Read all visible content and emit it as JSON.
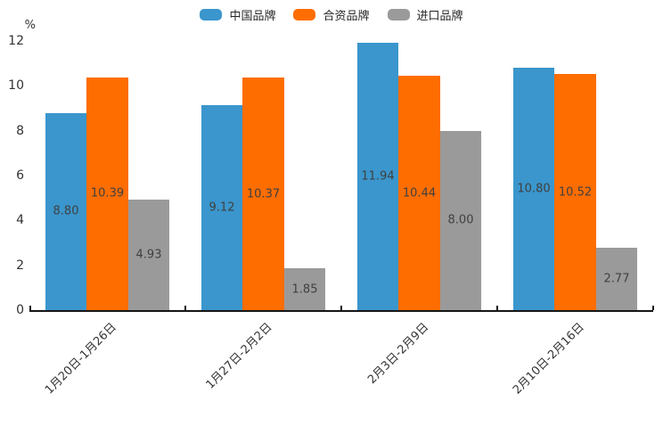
{
  "chart_data": {
    "type": "bar",
    "title": "",
    "unit_label": "%",
    "categories": [
      "1月20日-1月26日",
      "1月27日-2月2日",
      "2月3日-2月9日",
      "2月10日-2月16日"
    ],
    "series": [
      {
        "name": "中国品牌",
        "color": "#3A96CC",
        "values": [
          8.8,
          9.12,
          11.94,
          10.8
        ],
        "labels": [
          "8.80",
          "9.12",
          "11.94",
          "10.80"
        ]
      },
      {
        "name": "合资品牌",
        "color": "#FE6D00",
        "values": [
          10.39,
          10.37,
          10.44,
          10.52
        ],
        "labels": [
          "10.39",
          "10.37",
          "10.44",
          "10.52"
        ]
      },
      {
        "name": "进口品牌",
        "color": "#9A9A9A",
        "values": [
          4.93,
          1.85,
          8.0,
          2.77
        ],
        "labels": [
          "4.93",
          "1.85",
          "8.00",
          "2.77"
        ]
      }
    ],
    "ylim": [
      0,
      12
    ],
    "yticks": [
      0,
      2,
      4,
      6,
      8,
      10,
      12
    ],
    "value_labels_shown": true,
    "legend_position": "top",
    "grid": false
  }
}
